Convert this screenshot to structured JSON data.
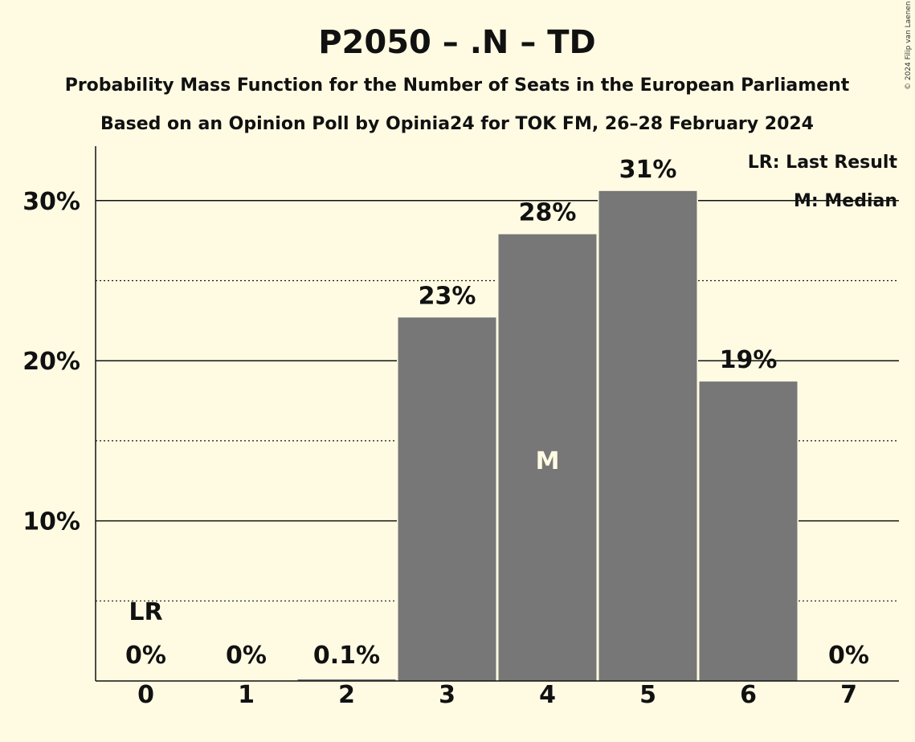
{
  "chart_data": {
    "type": "bar",
    "title": "P2050 – .N – TD",
    "subtitle1": "Probability Mass Function for the Number of Seats in the European Parliament",
    "subtitle2": "Based on an Opinion Poll by Opinia24 for TOK FM, 26–28 February 2024",
    "categories": [
      "0",
      "1",
      "2",
      "3",
      "4",
      "5",
      "6",
      "7"
    ],
    "values": [
      0.0,
      0.0,
      0.1,
      22.7,
      27.9,
      30.6,
      18.7,
      0.0
    ],
    "data_labels": [
      "0%",
      "0%",
      "0.1%",
      "23%",
      "28%",
      "31%",
      "19%",
      "0%"
    ],
    "y_ticks": [
      {
        "value": 10,
        "label": "10%"
      },
      {
        "value": 20,
        "label": "20%"
      },
      {
        "value": 30,
        "label": "30%"
      }
    ],
    "ylim": [
      0,
      33.4
    ],
    "minor_grid": [
      5,
      15,
      25
    ],
    "last_result_index": 0,
    "last_result_marker": "LR",
    "median_index": 4,
    "median_marker": "M",
    "legend": [
      "LR: Last Result",
      "M: Median"
    ],
    "legend_position": "top-right",
    "bar_color": "#777777",
    "background_color": "#fffbe3",
    "copyright": "© 2024 Filip van Laenen"
  }
}
